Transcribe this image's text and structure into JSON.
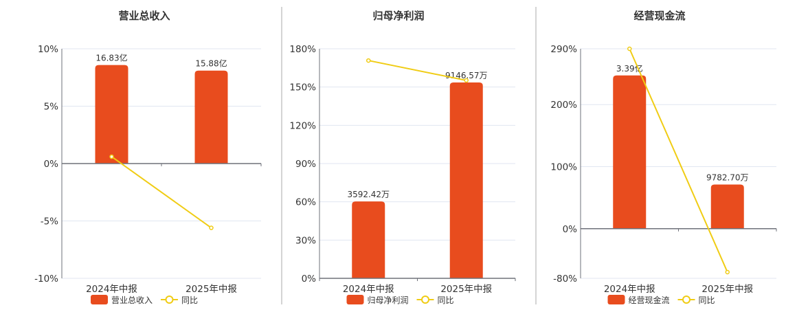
{
  "colors": {
    "bar": "#E84C1E",
    "line": "#F0CC14",
    "grid": "#E0E6F1",
    "axis": "#6E7079",
    "text": "#333333",
    "divider": "#AAAAAA"
  },
  "chart_data": [
    {
      "type": "bar+line",
      "title": "营业总收入",
      "categories": [
        "2024年中报",
        "2025年中报"
      ],
      "yticks": [
        "10%",
        "5%",
        "0%",
        "-5%",
        "-10%"
      ],
      "ylim": [
        -10,
        10
      ],
      "tick_values": [
        10,
        5,
        0,
        -5,
        -10
      ],
      "bar_series": {
        "name": "营业总收入",
        "values": [
          16.83,
          15.88
        ],
        "unit": "亿",
        "labels": [
          "16.83亿",
          "15.88亿"
        ],
        "axis_max": 19.6
      },
      "line_series": {
        "name": "同比",
        "values": [
          0.6,
          -5.6
        ]
      }
    },
    {
      "type": "bar+line",
      "title": "归母净利润",
      "categories": [
        "2024年中报",
        "2025年中报"
      ],
      "yticks": [
        "180%",
        "150%",
        "120%",
        "90%",
        "60%",
        "30%",
        "0%"
      ],
      "ylim": [
        0,
        180
      ],
      "tick_values": [
        180,
        150,
        120,
        90,
        60,
        30,
        0
      ],
      "bar_series": {
        "name": "归母净利润",
        "values": [
          3592.42,
          9146.57
        ],
        "unit": "万",
        "labels": [
          "3592.42万",
          "9146.57万"
        ],
        "axis_max": 10720
      },
      "line_series": {
        "name": "同比",
        "values": [
          170.8,
          155.2
        ]
      }
    },
    {
      "type": "bar+line",
      "title": "经营现金流",
      "categories": [
        "2024年中报",
        "2025年中报"
      ],
      "yticks": [
        "290%",
        "200%",
        "100%",
        "0%",
        "-80%"
      ],
      "ylim": [
        -80,
        290
      ],
      "tick_values": [
        290,
        200,
        100,
        0,
        -80
      ],
      "bar_series": {
        "name": "经营现金流",
        "values": [
          3.39,
          0.97827
        ],
        "unit": "亿",
        "labels": [
          "3.39亿",
          "9782.70万"
        ],
        "axis_max": 3.98
      },
      "line_series": {
        "name": "同比",
        "values": [
          290,
          -70
        ]
      }
    }
  ]
}
